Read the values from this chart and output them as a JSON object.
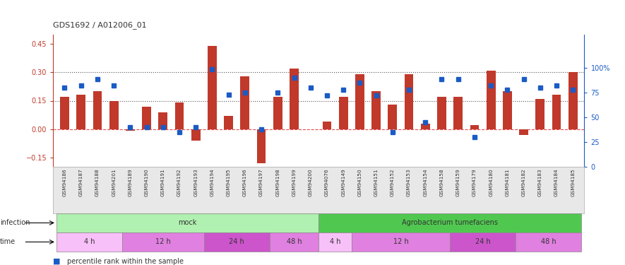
{
  "title": "GDS1692 / A012006_01",
  "samples": [
    "GSM94186",
    "GSM94187",
    "GSM94188",
    "GSM94201",
    "GSM94189",
    "GSM94190",
    "GSM94191",
    "GSM94192",
    "GSM94193",
    "GSM94194",
    "GSM94195",
    "GSM94196",
    "GSM94197",
    "GSM94198",
    "GSM94199",
    "GSM94200",
    "GSM94076",
    "GSM94149",
    "GSM94150",
    "GSM94151",
    "GSM94152",
    "GSM94153",
    "GSM94154",
    "GSM94158",
    "GSM94159",
    "GSM94179",
    "GSM94180",
    "GSM94181",
    "GSM94182",
    "GSM94183",
    "GSM94184",
    "GSM94185"
  ],
  "log2_ratio": [
    0.17,
    0.18,
    0.2,
    0.15,
    -0.01,
    0.12,
    0.09,
    0.14,
    -0.06,
    0.44,
    0.07,
    0.28,
    -0.18,
    0.17,
    0.32,
    0.0,
    0.04,
    0.17,
    0.29,
    0.2,
    0.13,
    0.29,
    0.03,
    0.17,
    0.17,
    0.02,
    0.31,
    0.2,
    -0.03,
    0.16,
    0.18,
    0.3
  ],
  "percentile": [
    80,
    82,
    88,
    82,
    40,
    40,
    40,
    35,
    40,
    98,
    73,
    75,
    38,
    75,
    90,
    80,
    72,
    78,
    85,
    72,
    35,
    78,
    45,
    88,
    88,
    30,
    82,
    78,
    88,
    80,
    82,
    78
  ],
  "bar_color": "#c0392b",
  "dot_color": "#1a5bc4",
  "zero_line_color": "#e05050",
  "grid_color": "#333333",
  "ylim_left": [
    -0.2,
    0.5
  ],
  "ylim_right": [
    0,
    133.33
  ],
  "yticks_left": [
    -0.15,
    0.0,
    0.15,
    0.3,
    0.45
  ],
  "yticks_right": [
    0,
    25,
    50,
    75,
    100
  ],
  "ytick_labels_right": [
    "0",
    "25",
    "50",
    "75",
    "100%"
  ],
  "hlines": [
    0.15,
    0.3
  ],
  "infection_groups": [
    {
      "label": "mock",
      "start": 0,
      "end": 15,
      "color": "#b0f0b0"
    },
    {
      "label": "Agrobacterium tumefaciens",
      "start": 16,
      "end": 31,
      "color": "#50c850"
    }
  ],
  "time_groups": [
    {
      "label": "4 h",
      "start": 0,
      "end": 3,
      "color": "#f8c0f8"
    },
    {
      "label": "12 h",
      "start": 4,
      "end": 8,
      "color": "#e080e0"
    },
    {
      "label": "24 h",
      "start": 9,
      "end": 12,
      "color": "#cc55cc"
    },
    {
      "label": "48 h",
      "start": 13,
      "end": 15,
      "color": "#e080e0"
    },
    {
      "label": "4 h",
      "start": 16,
      "end": 17,
      "color": "#f8c0f8"
    },
    {
      "label": "12 h",
      "start": 18,
      "end": 23,
      "color": "#e080e0"
    },
    {
      "label": "24 h",
      "start": 24,
      "end": 27,
      "color": "#cc55cc"
    },
    {
      "label": "48 h",
      "start": 28,
      "end": 31,
      "color": "#e080e0"
    }
  ],
  "bg_color": "#ffffff"
}
